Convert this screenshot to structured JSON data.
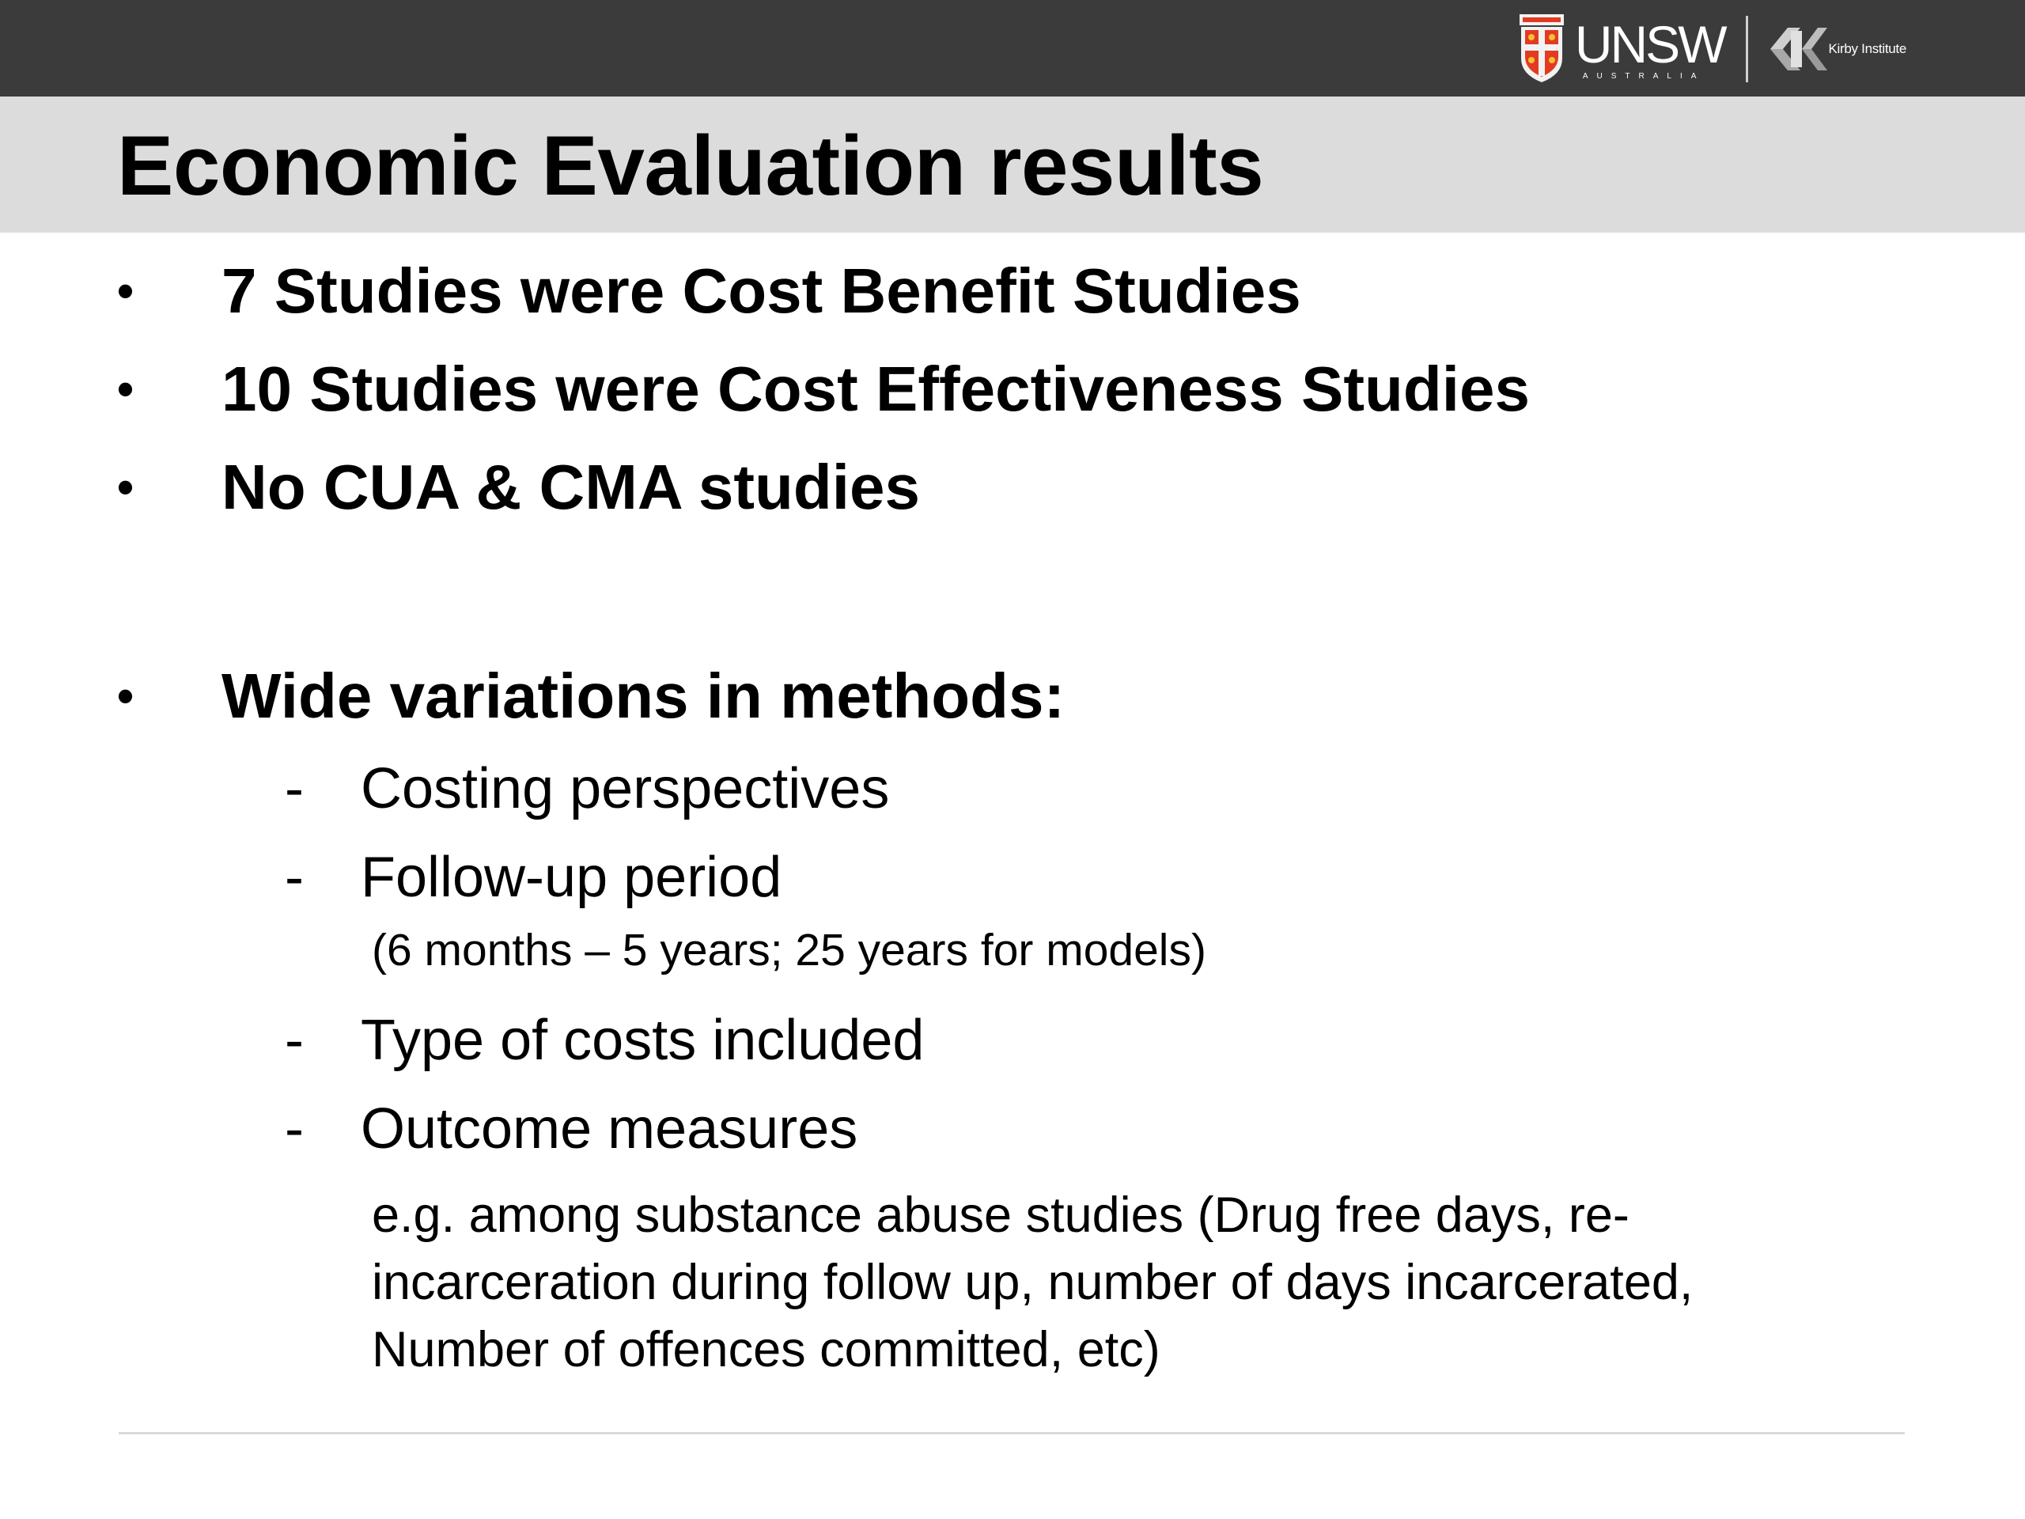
{
  "header": {
    "logos": {
      "unsw": "UNSW",
      "unsw_sub": "AUSTRALIA",
      "kirby": "Kirby Institute"
    }
  },
  "slide": {
    "title": "Economic Evaluation results",
    "bullets": [
      {
        "mark": "•",
        "text": "7 Studies were Cost Benefit Studies"
      },
      {
        "mark": "•",
        "text": "10 Studies were Cost Effectiveness Studies"
      },
      {
        "mark": "•",
        "text": "No CUA & CMA studies"
      },
      {
        "mark": "•",
        "text": "Wide variations in methods:"
      }
    ],
    "sub_items": [
      {
        "mark": "-",
        "text": "Costing perspectives"
      },
      {
        "mark": "-",
        "text": "Follow-up period"
      },
      {
        "mark": "-",
        "text": "Type of costs included"
      },
      {
        "mark": "-",
        "text": "Outcome measures"
      }
    ],
    "followup_note": "(6 months – 5 years; 25 years for models)",
    "outcome_note_lines": [
      "e.g. among substance abuse studies (Drug free days, re-",
      "incarceration during follow up, number of days incarcerated,",
      "Number of offences committed, etc)"
    ]
  }
}
